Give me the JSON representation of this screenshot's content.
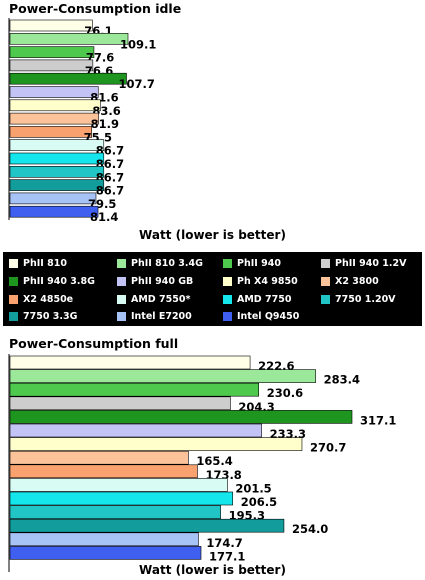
{
  "chart_data": [
    {
      "type": "bar",
      "orientation": "horizontal",
      "title": "Power-Consumption idle",
      "xlabel": "Watt (lower is better)",
      "categories": [
        "PhII 810",
        "PhII 810 3.4G",
        "PhII 940",
        "PhII 940 1.2V",
        "PhII 940 3.8G",
        "PhII 940 GB",
        "Ph X4 9850",
        "X2 3800",
        "X2 4850e",
        "AMD 7550*",
        "AMD 7750",
        "7750 1.20V",
        "7750 3.3G",
        "Intel E7200",
        "Intel Q9450"
      ],
      "values": [
        76.1,
        109.1,
        77.6,
        76.6,
        107.7,
        81.6,
        83.6,
        81.9,
        75.5,
        86.7,
        86.7,
        86.7,
        86.7,
        79.5,
        81.4
      ],
      "value_labels": [
        "76.1",
        "109.1",
        "77.6",
        "76.6",
        "107.7",
        "81.6",
        "83.6",
        "81.9",
        "75.5",
        "86.7",
        "86.7",
        "86.7",
        "86.7",
        "79.5",
        "81.4"
      ]
    },
    {
      "type": "bar",
      "orientation": "horizontal",
      "title": "Power-Consumption full",
      "xlabel": "Watt (lower is better)",
      "categories": [
        "PhII 810",
        "PhII 810 3.4G",
        "PhII 940",
        "PhII 940 1.2V",
        "PhII 940 3.8G",
        "PhII 940 GB",
        "Ph X4 9850",
        "X2 3800",
        "X2 4850e",
        "AMD 7550*",
        "AMD 7750",
        "7750 1.20V",
        "7750 3.3G",
        "Intel E7200",
        "Intel Q9450"
      ],
      "values": [
        222.6,
        283.4,
        230.6,
        204.3,
        317.1,
        233.3,
        270.7,
        165.4,
        173.8,
        201.5,
        206.5,
        195.3,
        254.0,
        174.7,
        177.1
      ],
      "value_labels": [
        "222.6",
        "283.4",
        "230.6",
        "204.3",
        "317.1",
        "233.3",
        "270.7",
        "165.4",
        "173.8",
        "201.5",
        "206.5",
        "195.3",
        "254.0",
        "174.7",
        "177.1"
      ]
    }
  ],
  "legend": {
    "items": [
      {
        "label": "PhII 810",
        "color": "#ffffe8"
      },
      {
        "label": "PhII 810 3.4G",
        "color": "#9be89b"
      },
      {
        "label": "PhII 940",
        "color": "#4ec94e"
      },
      {
        "label": "PhII 940 1.2V",
        "color": "#cdcdcd"
      },
      {
        "label": "PhII 940 3.8G",
        "color": "#1e951e"
      },
      {
        "label": "PhII 940 GB",
        "color": "#c3c3f5"
      },
      {
        "label": "Ph X4 9850",
        "color": "#ffffcc"
      },
      {
        "label": "X2 3800",
        "color": "#fcc39a"
      },
      {
        "label": "X2 4850e",
        "color": "#f9a26f"
      },
      {
        "label": "AMD 7550*",
        "color": "#d8fcf4"
      },
      {
        "label": "AMD 7750",
        "color": "#14e6ec"
      },
      {
        "label": "7750 1.20V",
        "color": "#22c5c5"
      },
      {
        "label": "7750 3.3G",
        "color": "#139c9c"
      },
      {
        "label": "Intel E7200",
        "color": "#a7c2f5"
      },
      {
        "label": "Intel Q9450",
        "color": "#3f5ff0"
      }
    ]
  }
}
